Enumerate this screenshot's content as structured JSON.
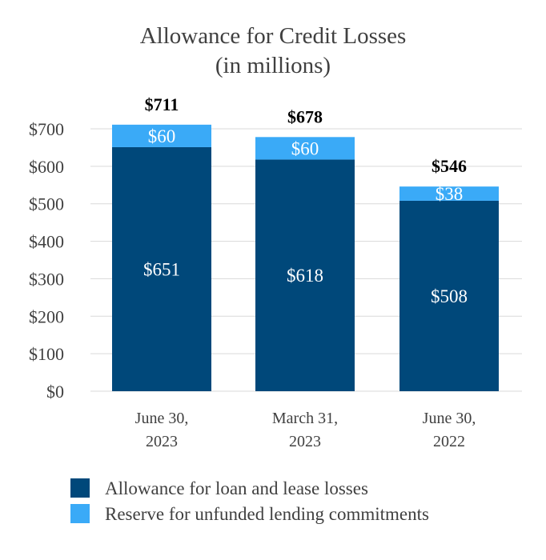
{
  "chart_data": {
    "type": "bar",
    "stacked": true,
    "title": [
      "Allowance for Credit Losses",
      "(in millions)"
    ],
    "categories": [
      [
        "June 30,",
        "2023"
      ],
      [
        "March 31,",
        "2023"
      ],
      [
        "June 30,",
        "2022"
      ]
    ],
    "series": [
      {
        "name": "Allowance for loan and lease losses",
        "color": "#00487a",
        "values": [
          651,
          618,
          508
        ],
        "labels": [
          "$651",
          "$618",
          "$508"
        ]
      },
      {
        "name": "Reserve for unfunded lending commitments",
        "color": "#3aaaf7",
        "values": [
          60,
          60,
          38
        ],
        "labels": [
          "$60",
          "$60",
          "$38"
        ]
      }
    ],
    "totals": [
      711,
      678,
      546
    ],
    "total_labels": [
      "$711",
      "$678",
      "$546"
    ],
    "y_ticks": [
      0,
      100,
      200,
      300,
      400,
      500,
      600,
      700
    ],
    "y_tick_labels": [
      "$0",
      "$100",
      "$200",
      "$300",
      "$400",
      "$500",
      "$600",
      "$700"
    ],
    "ylim": [
      0,
      700
    ],
    "grid": true,
    "legend_position": "bottom-left"
  }
}
